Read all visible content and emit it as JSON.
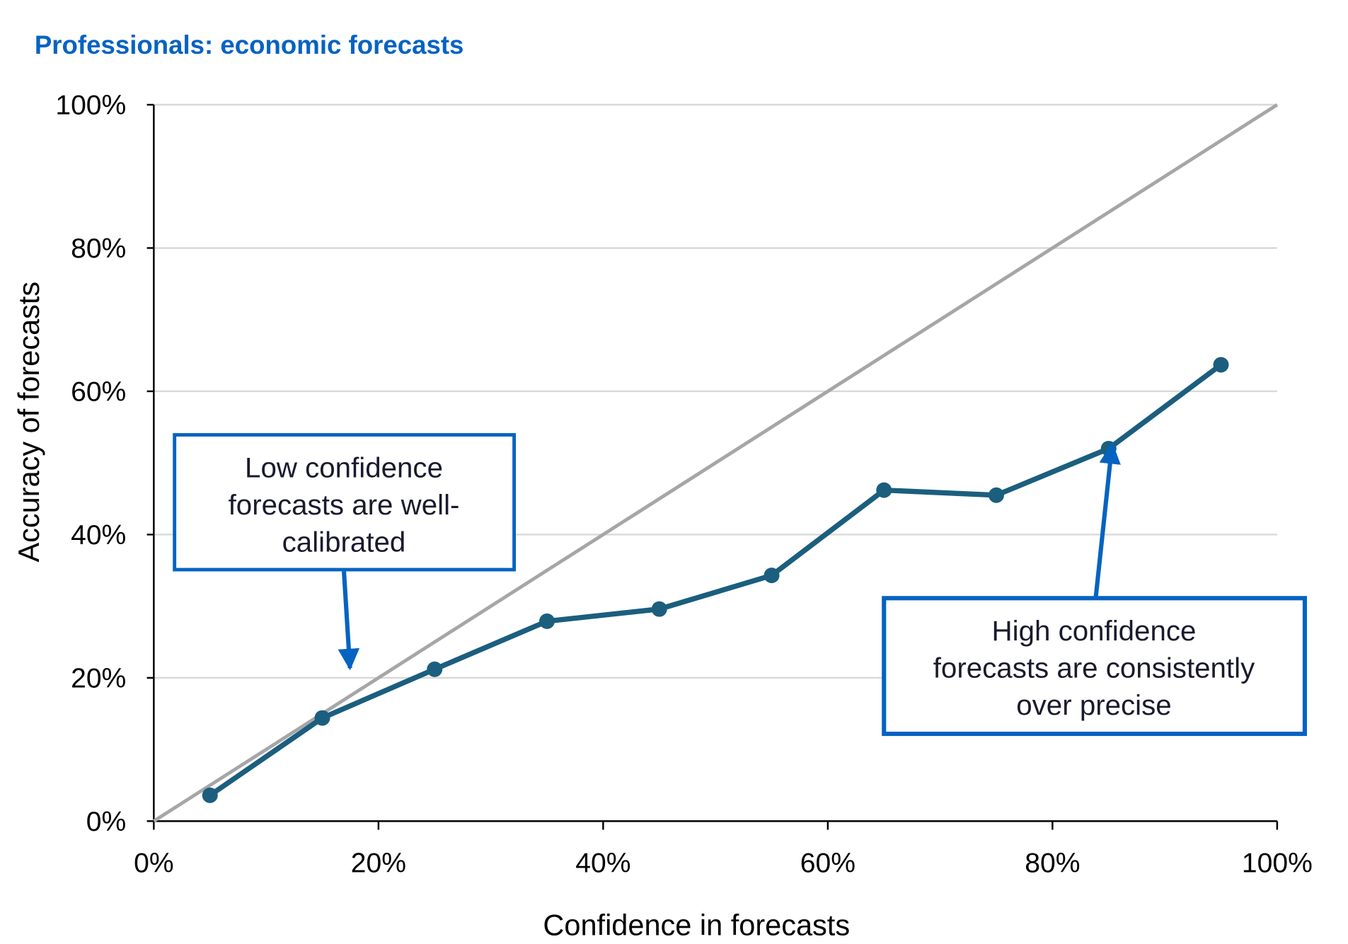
{
  "chart_data": {
    "type": "line",
    "title": "Professionals: economic forecasts",
    "xlabel": "Confidence in forecasts",
    "ylabel": "Accuracy of  forecasts",
    "xlim": [
      0,
      100
    ],
    "ylim": [
      0,
      100
    ],
    "x_ticks": [
      "0%",
      "20%",
      "40%",
      "60%",
      "80%",
      "100%"
    ],
    "y_ticks": [
      "0%",
      "20%",
      "40%",
      "60%",
      "80%",
      "100%"
    ],
    "grid": "horizontal",
    "series": [
      {
        "x": [
          5,
          15,
          25,
          35,
          45,
          55,
          65,
          75,
          85,
          95
        ],
        "y": [
          3.6,
          14.4,
          21.2,
          27.9,
          29.6,
          34.3,
          46.2,
          45.5,
          52.0,
          63.7
        ],
        "color": "#1B5E7E"
      },
      {
        "x": [
          0,
          100
        ],
        "y": [
          0,
          100
        ],
        "color": "#A6A6A6"
      }
    ],
    "annotations": [
      {
        "lines": [
          "Low confidence",
          "forecasts are well-",
          "calibrated"
        ],
        "points_to": [
          17.5,
          21
        ]
      },
      {
        "lines": [
          "High confidence",
          "forecasts are consistently",
          "over precise"
        ],
        "points_to": [
          85,
          52
        ]
      }
    ],
    "colors": {
      "title": "#0563C1",
      "annotation_border": "#0563C1",
      "grid": "#D9D9D9"
    }
  }
}
